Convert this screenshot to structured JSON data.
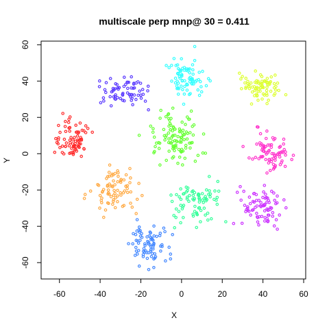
{
  "chart_data": {
    "type": "scatter",
    "title": "multiscale perp mnp@ 30 = 0.411",
    "xlabel": "X",
    "ylabel": "Y",
    "xlim": [
      -69,
      61
    ],
    "ylim": [
      -69,
      62
    ],
    "xticks": [
      -60,
      -40,
      -20,
      0,
      20,
      40,
      60
    ],
    "yticks": [
      -60,
      -40,
      -20,
      0,
      20,
      40,
      60
    ],
    "grid": false,
    "legend": "none",
    "marker": "open-circle",
    "clusters": [
      {
        "color": "#ff2a2a",
        "center": [
          -54,
          7
        ],
        "spread": [
          7,
          8
        ],
        "count": 80
      },
      {
        "color": "#5a3aff",
        "center": [
          -28,
          35
        ],
        "spread": [
          9,
          6
        ],
        "count": 70
      },
      {
        "color": "#33ffff",
        "center": [
          3,
          42
        ],
        "spread": [
          7,
          8
        ],
        "count": 80
      },
      {
        "color": "#ddff33",
        "center": [
          38,
          37
        ],
        "spread": [
          7,
          6
        ],
        "count": 80
      },
      {
        "color": "#ff33cc",
        "center": [
          43,
          3
        ],
        "spread": [
          7,
          8
        ],
        "count": 80
      },
      {
        "color": "#cc33ff",
        "center": [
          40,
          -30
        ],
        "spread": [
          8,
          8
        ],
        "count": 80
      },
      {
        "color": "#66ff33",
        "center": [
          -3,
          8
        ],
        "spread": [
          10,
          9
        ],
        "count": 110
      },
      {
        "color": "#33ff99",
        "center": [
          8,
          -27
        ],
        "spread": [
          10,
          9
        ],
        "count": 80
      },
      {
        "color": "#ffaa44",
        "center": [
          -33,
          -20
        ],
        "spread": [
          8,
          9
        ],
        "count": 80
      },
      {
        "color": "#4488ff",
        "center": [
          -16,
          -50
        ],
        "spread": [
          7,
          7
        ],
        "count": 80
      }
    ]
  }
}
